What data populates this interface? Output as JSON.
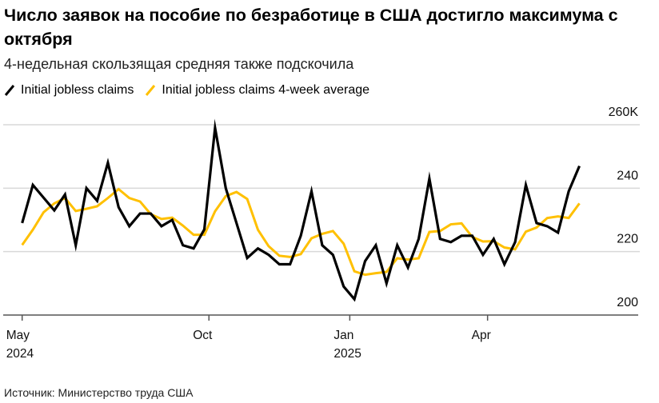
{
  "title": "Число заявок на пособие по безработице в США достигло максимума с октября",
  "subtitle": "4-недельная скользящая средняя также подскочила",
  "source": "Источник: Министерство труда США",
  "chart_data": {
    "type": "line",
    "title": "Число заявок на пособие по безработице в США достигло максимума с октября",
    "subtitle": "4-недельная скользящая средняя также подскочила",
    "ylim": [
      200,
      260
    ],
    "y_ticks": [
      {
        "value": 200,
        "label": "200"
      },
      {
        "value": 220,
        "label": "220"
      },
      {
        "value": 240,
        "label": "240"
      },
      {
        "value": 260,
        "label": "260K"
      }
    ],
    "y_axis_side": "right",
    "grid": true,
    "legend_placement": "top-left",
    "x_start": "2024-06-01",
    "x_step_days": 7,
    "x_ticks": [
      {
        "date": "2024-05-01",
        "label": "May",
        "sublabel": "2024"
      },
      {
        "date": "2024-10-01",
        "label": "Oct",
        "sublabel": ""
      },
      {
        "date": "2025-01-01",
        "label": "Jan",
        "sublabel": "2025"
      },
      {
        "date": "2025-04-01",
        "label": "Apr",
        "sublabel": ""
      }
    ],
    "series": [
      {
        "name": "Initial jobless claims",
        "color": "#000000",
        "values": [
          229,
          241,
          237,
          233,
          238,
          222,
          240,
          236,
          248,
          234,
          228,
          232,
          232,
          228,
          230,
          222,
          221,
          227,
          259,
          240,
          229,
          218,
          221,
          219,
          216,
          216,
          225,
          239,
          222,
          219,
          209,
          205,
          217,
          222,
          210,
          222,
          215,
          224,
          243,
          224,
          223,
          225,
          225,
          219,
          224,
          216,
          223,
          241,
          229,
          228,
          226,
          239,
          247
        ]
      },
      {
        "name": "Initial jobless claims 4-week average",
        "color": "#FFC000",
        "values": [
          222.1,
          226.9,
          232.4,
          235.2,
          236.9,
          232.8,
          233.5,
          234.3,
          236.9,
          239.7,
          236.9,
          235.8,
          231.8,
          230.3,
          230.7,
          228.2,
          225.3,
          225.3,
          232.7,
          237.5,
          238.8,
          236.6,
          226.9,
          221.7,
          218.7,
          218.3,
          219.2,
          224.2,
          225.6,
          226.5,
          222.5,
          213.8,
          212.7,
          213.2,
          213.6,
          217.9,
          217.5,
          217.9,
          226.2,
          226.5,
          228.6,
          228.9,
          224.6,
          223.2,
          223.3,
          221.3,
          220.7,
          226.3,
          227.6,
          230.6,
          231.1,
          230.6,
          235.2
        ]
      }
    ]
  }
}
